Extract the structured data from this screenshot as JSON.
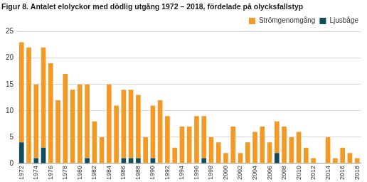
{
  "chart_data": {
    "type": "bar",
    "title": "Figur 8. Antalet elolyckor med dödlig utgång 1972 – 2018, fördelade på olycksfallstyp",
    "categories": [
      "1972",
      null,
      "1974",
      null,
      "1976",
      null,
      "1978",
      null,
      "1980",
      null,
      "1982",
      null,
      "1984",
      null,
      "1986",
      null,
      "1988",
      null,
      "1990",
      null,
      "1992",
      null,
      "1994",
      null,
      "1996",
      null,
      "1998",
      null,
      "2000",
      null,
      "2002",
      null,
      "2004",
      null,
      "2006",
      null,
      "2008",
      null,
      "2010",
      null,
      "2012",
      null,
      "2014",
      null,
      "2016",
      null,
      "2018"
    ],
    "series": [
      {
        "name": "Strömgenomgång",
        "color": "#f39a26",
        "values": [
          19,
          22,
          14,
          19,
          19,
          12,
          17,
          14,
          15,
          14,
          8,
          5,
          15,
          11,
          13,
          13,
          12,
          5,
          10,
          12,
          9,
          3,
          7,
          7,
          9,
          8,
          5,
          4,
          2,
          7,
          2,
          4,
          6,
          7,
          4,
          6,
          7,
          5,
          6,
          3,
          1,
          0,
          5,
          1,
          3,
          2,
          1
        ]
      },
      {
        "name": "Ljusbåge",
        "color": "#0f4c5c",
        "values": [
          4,
          0,
          1,
          3,
          0,
          0,
          0,
          0,
          0,
          1,
          0,
          0,
          0,
          0,
          1,
          1,
          1,
          0,
          1,
          0,
          0,
          0,
          0,
          0,
          0,
          1,
          0,
          0,
          0,
          0,
          0,
          0,
          0,
          0,
          0,
          2,
          0,
          0,
          0,
          0,
          0,
          0,
          0,
          0,
          0,
          0,
          0
        ]
      }
    ],
    "stacked": true,
    "ylim": [
      0,
      25
    ],
    "yticks": [
      0,
      5,
      10,
      15,
      20,
      25
    ],
    "grid": true,
    "legend": "top right"
  }
}
